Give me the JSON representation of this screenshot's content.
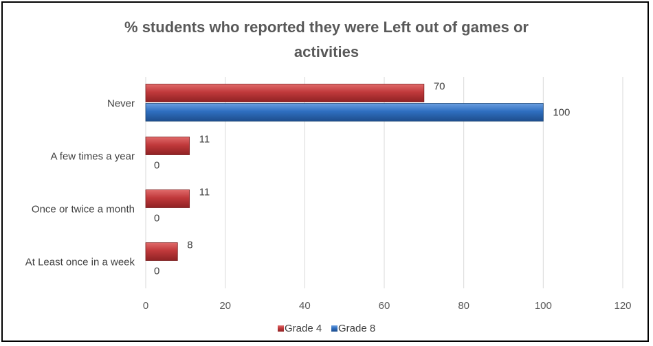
{
  "chart_data": {
    "type": "bar",
    "orientation": "horizontal",
    "title_lines": [
      "% students who reported they were Left out of games or",
      "activities"
    ],
    "categories": [
      "Never",
      "A few times a year",
      "Once or twice a month",
      "At Least once in a week"
    ],
    "series": [
      {
        "name": "Grade 4",
        "values": [
          70,
          11,
          11,
          8
        ],
        "color": "#c0393b"
      },
      {
        "name": "Grade 8",
        "values": [
          100,
          0,
          0,
          0
        ],
        "color": "#2f6fc0"
      }
    ],
    "xlim": [
      0,
      120
    ],
    "xticks": [
      0,
      20,
      40,
      60,
      80,
      100,
      120
    ],
    "grid": true,
    "legend": "bottom"
  }
}
